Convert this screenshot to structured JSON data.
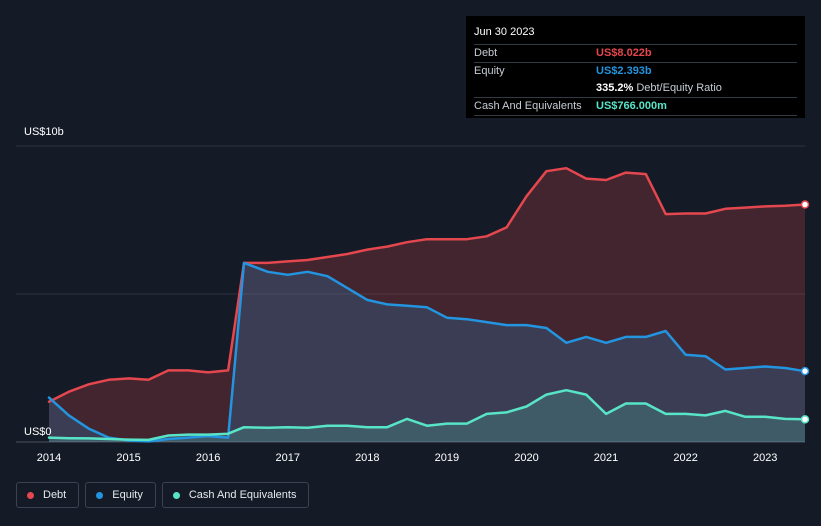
{
  "tooltip": {
    "date": "Jun 30 2023",
    "debt_label": "Debt",
    "debt_value": "US$8.022b",
    "equity_label": "Equity",
    "equity_value": "US$2.393b",
    "ratio_value": "335.2%",
    "ratio_label": "Debt/Equity Ratio",
    "cash_label": "Cash And Equivalents",
    "cash_value": "US$766.000m"
  },
  "legend": {
    "debt": "Debt",
    "equity": "Equity",
    "cash": "Cash And Equivalents"
  },
  "colors": {
    "debt": "#e4474e",
    "equity": "#2394df",
    "cash": "#58e4c7",
    "background": "#151b26",
    "grid": "#2c323d"
  },
  "chart_data": {
    "type": "area",
    "title": "",
    "xlabel": "",
    "ylabel": "",
    "y_top_label": "US$10b",
    "y_bottom_label": "US$0",
    "ylim": [
      0,
      10
    ],
    "xlim": [
      2014.0,
      2023.5
    ],
    "x_ticks": [
      2014,
      2015,
      2016,
      2017,
      2018,
      2019,
      2020,
      2021,
      2022,
      2023
    ],
    "x_tick_labels": [
      "2014",
      "2015",
      "2016",
      "2017",
      "2018",
      "2019",
      "2020",
      "2021",
      "2022",
      "2023"
    ],
    "units": "US$ billions",
    "series": [
      {
        "name": "Debt",
        "key": "debt",
        "points": [
          [
            2014.0,
            1.36
          ],
          [
            2014.25,
            1.7
          ],
          [
            2014.5,
            1.95
          ],
          [
            2014.75,
            2.1
          ],
          [
            2015.0,
            2.15
          ],
          [
            2015.25,
            2.1
          ],
          [
            2015.5,
            2.42
          ],
          [
            2015.75,
            2.42
          ],
          [
            2016.0,
            2.35
          ],
          [
            2016.25,
            2.42
          ],
          [
            2016.45,
            6.05
          ],
          [
            2016.75,
            6.05
          ],
          [
            2017.0,
            6.1
          ],
          [
            2017.25,
            6.15
          ],
          [
            2017.5,
            6.25
          ],
          [
            2017.75,
            6.35
          ],
          [
            2018.0,
            6.5
          ],
          [
            2018.25,
            6.6
          ],
          [
            2018.5,
            6.75
          ],
          [
            2018.75,
            6.85
          ],
          [
            2019.0,
            6.85
          ],
          [
            2019.25,
            6.85
          ],
          [
            2019.5,
            6.95
          ],
          [
            2019.75,
            7.25
          ],
          [
            2020.0,
            8.3
          ],
          [
            2020.25,
            9.15
          ],
          [
            2020.5,
            9.25
          ],
          [
            2020.75,
            8.9
          ],
          [
            2021.0,
            8.85
          ],
          [
            2021.25,
            9.1
          ],
          [
            2021.5,
            9.05
          ],
          [
            2021.75,
            7.7
          ],
          [
            2022.0,
            7.72
          ],
          [
            2022.25,
            7.72
          ],
          [
            2022.5,
            7.88
          ],
          [
            2022.75,
            7.92
          ],
          [
            2023.0,
            7.96
          ],
          [
            2023.25,
            7.98
          ],
          [
            2023.5,
            8.022
          ]
        ]
      },
      {
        "name": "Equity",
        "key": "equity",
        "points": [
          [
            2014.0,
            1.5
          ],
          [
            2014.25,
            0.9
          ],
          [
            2014.5,
            0.45
          ],
          [
            2014.75,
            0.15
          ],
          [
            2015.0,
            0.05
          ],
          [
            2015.25,
            0.02
          ],
          [
            2015.5,
            0.1
          ],
          [
            2015.75,
            0.15
          ],
          [
            2016.0,
            0.2
          ],
          [
            2016.25,
            0.15
          ],
          [
            2016.45,
            6.05
          ],
          [
            2016.75,
            5.75
          ],
          [
            2017.0,
            5.65
          ],
          [
            2017.25,
            5.75
          ],
          [
            2017.5,
            5.6
          ],
          [
            2017.75,
            5.2
          ],
          [
            2018.0,
            4.8
          ],
          [
            2018.25,
            4.65
          ],
          [
            2018.5,
            4.6
          ],
          [
            2018.75,
            4.55
          ],
          [
            2019.0,
            4.2
          ],
          [
            2019.25,
            4.15
          ],
          [
            2019.5,
            4.05
          ],
          [
            2019.75,
            3.95
          ],
          [
            2020.0,
            3.95
          ],
          [
            2020.25,
            3.85
          ],
          [
            2020.5,
            3.35
          ],
          [
            2020.75,
            3.55
          ],
          [
            2021.0,
            3.35
          ],
          [
            2021.25,
            3.55
          ],
          [
            2021.5,
            3.55
          ],
          [
            2021.75,
            3.75
          ],
          [
            2022.0,
            2.95
          ],
          [
            2022.25,
            2.9
          ],
          [
            2022.5,
            2.45
          ],
          [
            2022.75,
            2.5
          ],
          [
            2023.0,
            2.55
          ],
          [
            2023.25,
            2.5
          ],
          [
            2023.5,
            2.393
          ]
        ]
      },
      {
        "name": "Cash And Equivalents",
        "key": "cash",
        "points": [
          [
            2014.0,
            0.15
          ],
          [
            2014.25,
            0.13
          ],
          [
            2014.5,
            0.12
          ],
          [
            2014.75,
            0.1
          ],
          [
            2015.0,
            0.08
          ],
          [
            2015.25,
            0.07
          ],
          [
            2015.5,
            0.22
          ],
          [
            2015.75,
            0.25
          ],
          [
            2016.0,
            0.25
          ],
          [
            2016.25,
            0.28
          ],
          [
            2016.45,
            0.5
          ],
          [
            2016.75,
            0.48
          ],
          [
            2017.0,
            0.5
          ],
          [
            2017.25,
            0.48
          ],
          [
            2017.5,
            0.55
          ],
          [
            2017.75,
            0.55
          ],
          [
            2018.0,
            0.5
          ],
          [
            2018.25,
            0.5
          ],
          [
            2018.5,
            0.78
          ],
          [
            2018.75,
            0.55
          ],
          [
            2019.0,
            0.62
          ],
          [
            2019.25,
            0.62
          ],
          [
            2019.5,
            0.95
          ],
          [
            2019.75,
            1.0
          ],
          [
            2020.0,
            1.2
          ],
          [
            2020.25,
            1.6
          ],
          [
            2020.5,
            1.75
          ],
          [
            2020.75,
            1.6
          ],
          [
            2021.0,
            0.95
          ],
          [
            2021.25,
            1.3
          ],
          [
            2021.5,
            1.3
          ],
          [
            2021.75,
            0.95
          ],
          [
            2022.0,
            0.95
          ],
          [
            2022.25,
            0.9
          ],
          [
            2022.5,
            1.05
          ],
          [
            2022.75,
            0.85
          ],
          [
            2023.0,
            0.85
          ],
          [
            2023.25,
            0.78
          ],
          [
            2023.5,
            0.766
          ]
        ]
      }
    ]
  }
}
